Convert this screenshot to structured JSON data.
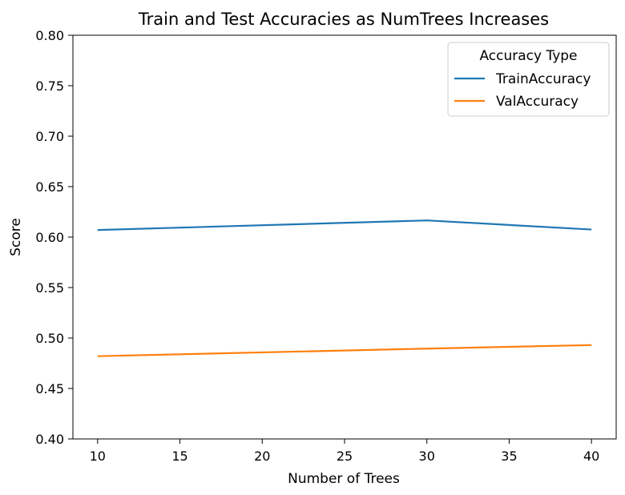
{
  "chart_data": {
    "type": "line",
    "title": "Train and Test Accuracies as NumTrees Increases",
    "xlabel": "Number of Trees",
    "ylabel": "Score",
    "x": [
      10,
      30,
      40
    ],
    "xlim": [
      8.5,
      41.5
    ],
    "ylim": [
      0.4,
      0.8
    ],
    "xticks": [
      10,
      15,
      20,
      25,
      30,
      35,
      40
    ],
    "yticks": [
      0.4,
      0.45,
      0.5,
      0.55,
      0.6,
      0.65,
      0.7,
      0.75,
      0.8
    ],
    "xtick_labels": [
      "10",
      "15",
      "20",
      "25",
      "30",
      "35",
      "40"
    ],
    "ytick_labels": [
      "0.40",
      "0.45",
      "0.50",
      "0.55",
      "0.60",
      "0.65",
      "0.70",
      "0.75",
      "0.80"
    ],
    "grid": false,
    "legend": {
      "title": "Accuracy Type",
      "placement": "top-right"
    },
    "series": [
      {
        "name": "TrainAccuracy",
        "color": "#1f77b4",
        "values": [
          0.607,
          0.6165,
          0.6075
        ]
      },
      {
        "name": "ValAccuracy",
        "color": "#ff7f0e",
        "values": [
          0.482,
          0.4895,
          0.493
        ]
      }
    ]
  }
}
